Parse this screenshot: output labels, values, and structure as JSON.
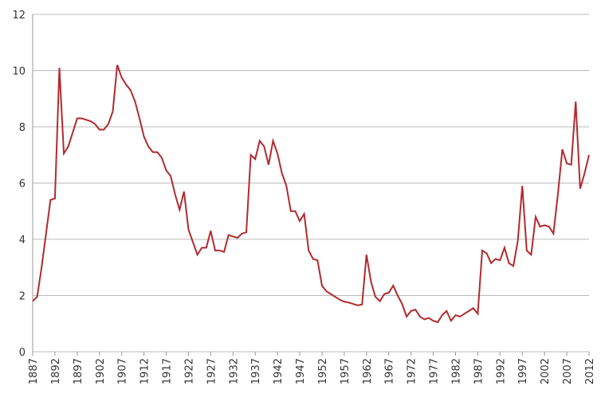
{
  "chart_data": {
    "type": "line",
    "x": [
      1887,
      1888,
      1889,
      1890,
      1891,
      1892,
      1893,
      1894,
      1895,
      1896,
      1897,
      1898,
      1899,
      1900,
      1901,
      1902,
      1903,
      1904,
      1905,
      1906,
      1907,
      1908,
      1909,
      1910,
      1911,
      1912,
      1913,
      1914,
      1915,
      1916,
      1917,
      1918,
      1919,
      1920,
      1921,
      1922,
      1923,
      1924,
      1925,
      1926,
      1927,
      1928,
      1929,
      1930,
      1931,
      1932,
      1933,
      1934,
      1935,
      1936,
      1937,
      1938,
      1939,
      1940,
      1941,
      1942,
      1943,
      1944,
      1945,
      1946,
      1947,
      1948,
      1949,
      1950,
      1951,
      1952,
      1953,
      1954,
      1955,
      1956,
      1957,
      1958,
      1959,
      1960,
      1961,
      1962,
      1963,
      1964,
      1965,
      1966,
      1967,
      1968,
      1969,
      1970,
      1971,
      1972,
      1973,
      1974,
      1975,
      1976,
      1977,
      1978,
      1979,
      1980,
      1981,
      1982,
      1983,
      1984,
      1985,
      1986,
      1987,
      1988,
      1989,
      1990,
      1991,
      1992,
      1993,
      1994,
      1995,
      1996,
      1997,
      1998,
      1999,
      2000,
      2001,
      2002,
      2003,
      2004,
      2005,
      2006,
      2007,
      2008,
      2009,
      2010,
      2011,
      2012
    ],
    "series": [
      {
        "color": "#b22a2e",
        "values": [
          1.8,
          1.95,
          3.0,
          4.2,
          5.4,
          5.45,
          10.1,
          7.05,
          7.3,
          7.8,
          8.3,
          8.3,
          8.25,
          8.2,
          8.1,
          7.9,
          7.9,
          8.1,
          8.55,
          10.2,
          9.75,
          9.5,
          9.3,
          8.9,
          8.3,
          7.65,
          7.3,
          7.1,
          7.1,
          6.9,
          6.45,
          6.25,
          5.6,
          5.05,
          5.7,
          4.35,
          3.9,
          3.45,
          3.7,
          3.7,
          4.3,
          3.6,
          3.6,
          3.55,
          4.15,
          4.1,
          4.05,
          4.2,
          4.25,
          7.0,
          6.85,
          7.5,
          7.3,
          6.65,
          7.5,
          7.05,
          6.35,
          5.9,
          5.0,
          5.0,
          4.65,
          4.9,
          3.6,
          3.3,
          3.25,
          2.35,
          2.15,
          2.05,
          1.95,
          1.85,
          1.78,
          1.75,
          1.7,
          1.65,
          1.68,
          3.45,
          2.5,
          1.95,
          1.8,
          2.05,
          2.1,
          2.35,
          2.0,
          1.7,
          1.25,
          1.45,
          1.5,
          1.25,
          1.15,
          1.2,
          1.1,
          1.05,
          1.3,
          1.45,
          1.1,
          1.3,
          1.25,
          1.35,
          1.45,
          1.55,
          1.35,
          3.6,
          3.5,
          3.15,
          3.3,
          3.25,
          3.7,
          3.15,
          3.05,
          3.95,
          5.9,
          3.6,
          3.45,
          4.8,
          4.45,
          4.5,
          4.45,
          4.2,
          5.6,
          7.2,
          6.7,
          6.65,
          8.9,
          5.8,
          6.35,
          7.0
        ]
      }
    ],
    "xlim": [
      1887,
      2012
    ],
    "xticks": [
      1887,
      1892,
      1897,
      1902,
      1907,
      1912,
      1917,
      1922,
      1927,
      1932,
      1937,
      1942,
      1947,
      1952,
      1957,
      1962,
      1967,
      1972,
      1977,
      1982,
      1987,
      1992,
      1997,
      2002,
      2007,
      2012
    ],
    "ylim": [
      0,
      12
    ],
    "yticks": [
      0,
      2,
      4,
      6,
      8,
      10,
      12
    ],
    "grid": true
  }
}
